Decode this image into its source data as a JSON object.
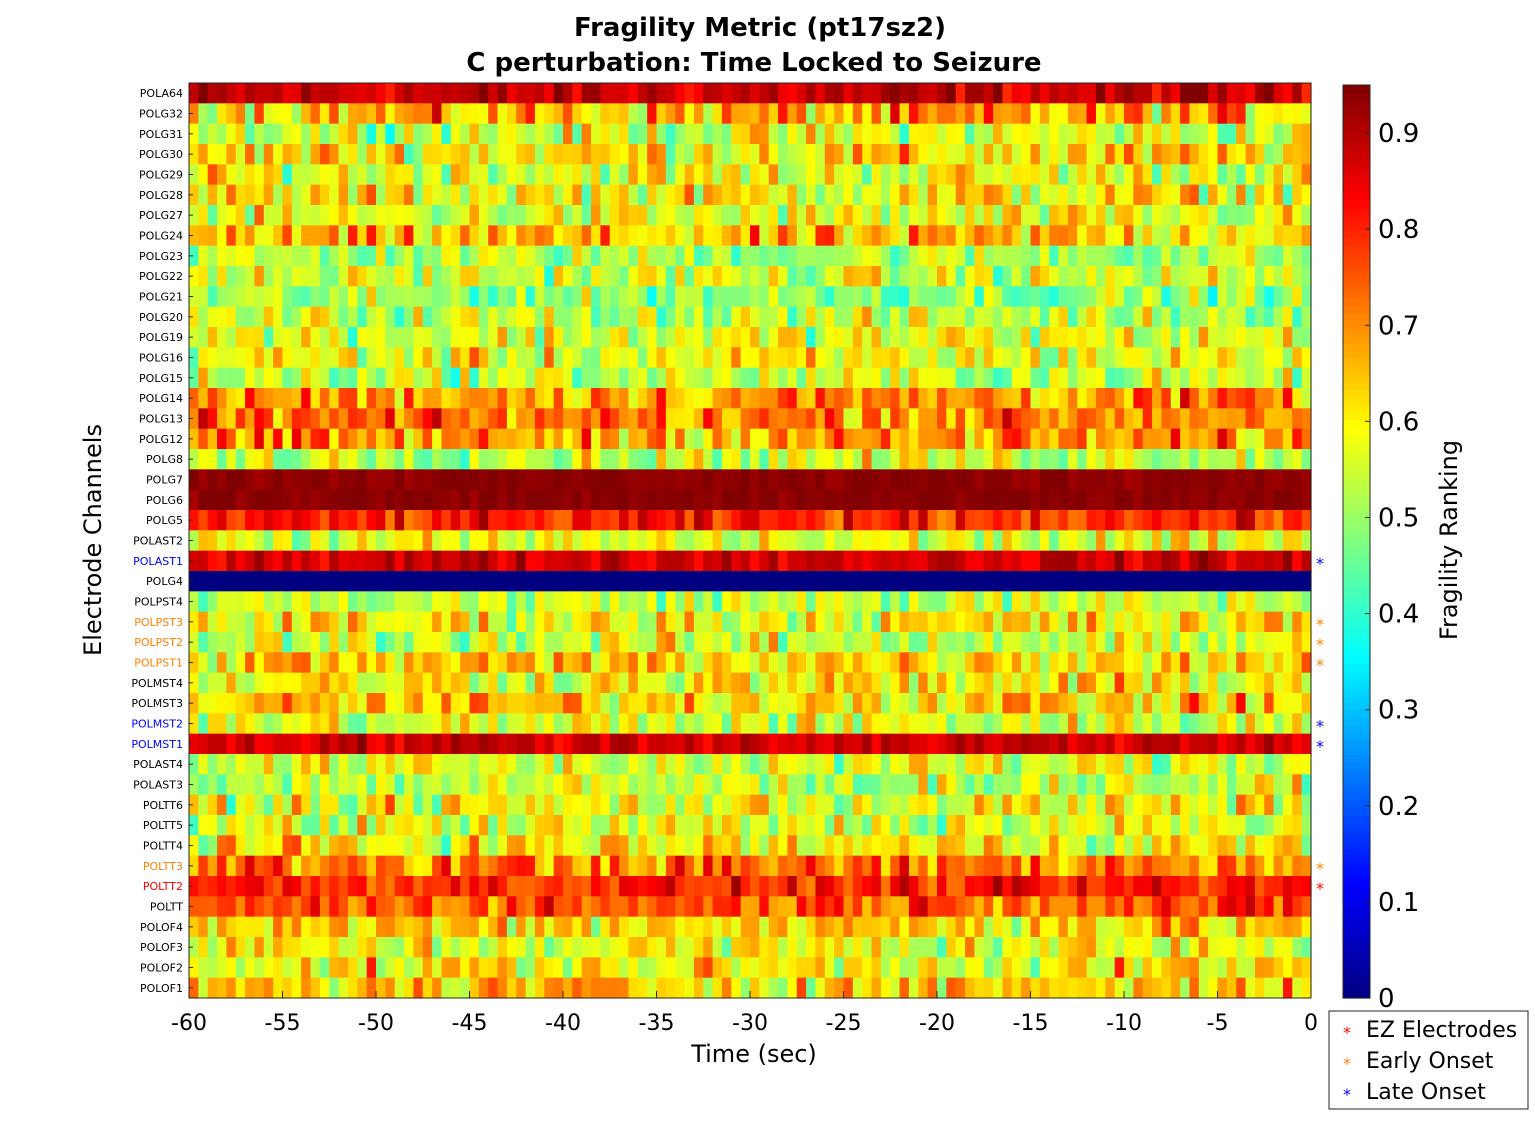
{
  "chart_data": {
    "type": "heatmap",
    "title": "Fragility Metric (pt17sz2)",
    "subtitle": "C perturbation:  Time Locked to Seizure",
    "xlabel": "Time (sec)",
    "ylabel": "Electrode Channels",
    "xlim": [
      -60,
      0
    ],
    "x_ticks": [
      "-60",
      "-55",
      "-50",
      "-45",
      "-40",
      "-35",
      "-30",
      "-25",
      "-20",
      "-15",
      "-10",
      "-5",
      "0"
    ],
    "colorbar": {
      "label": "Fragility Ranking",
      "colormap": "jet",
      "range": [
        0,
        0.95
      ],
      "ticks": [
        "0",
        "0.1",
        "0.2",
        "0.3",
        "0.4",
        "0.5",
        "0.6",
        "0.7",
        "0.8",
        "0.9"
      ]
    },
    "num_time_windows": 120,
    "channels": [
      {
        "name": "POLA64",
        "mean": 0.88,
        "spread": 0.07,
        "marker": null
      },
      {
        "name": "POLG32",
        "mean": 0.66,
        "spread": 0.14,
        "marker": null
      },
      {
        "name": "POLG31",
        "mean": 0.56,
        "spread": 0.12,
        "marker": null
      },
      {
        "name": "POLG30",
        "mean": 0.62,
        "spread": 0.13,
        "marker": null
      },
      {
        "name": "POLG29",
        "mean": 0.58,
        "spread": 0.12,
        "marker": null
      },
      {
        "name": "POLG28",
        "mean": 0.6,
        "spread": 0.12,
        "marker": null
      },
      {
        "name": "POLG27",
        "mean": 0.56,
        "spread": 0.12,
        "marker": null
      },
      {
        "name": "POLG24",
        "mean": 0.64,
        "spread": 0.13,
        "marker": null
      },
      {
        "name": "POLG23",
        "mean": 0.52,
        "spread": 0.1,
        "marker": null
      },
      {
        "name": "POLG22",
        "mean": 0.55,
        "spread": 0.11,
        "marker": null
      },
      {
        "name": "POLG21",
        "mean": 0.5,
        "spread": 0.1,
        "marker": null
      },
      {
        "name": "POLG20",
        "mean": 0.54,
        "spread": 0.11,
        "marker": null
      },
      {
        "name": "POLG19",
        "mean": 0.57,
        "spread": 0.12,
        "marker": null
      },
      {
        "name": "POLG16",
        "mean": 0.58,
        "spread": 0.12,
        "marker": null
      },
      {
        "name": "POLG15",
        "mean": 0.54,
        "spread": 0.11,
        "marker": null
      },
      {
        "name": "POLG14",
        "mean": 0.7,
        "spread": 0.12,
        "marker": null
      },
      {
        "name": "POLG13",
        "mean": 0.72,
        "spread": 0.12,
        "marker": null
      },
      {
        "name": "POLG12",
        "mean": 0.68,
        "spread": 0.13,
        "marker": null
      },
      {
        "name": "POLG8",
        "mean": 0.56,
        "spread": 0.11,
        "marker": null
      },
      {
        "name": "POLG7",
        "mean": 0.94,
        "spread": 0.02,
        "marker": null
      },
      {
        "name": "POLG6",
        "mean": 0.94,
        "spread": 0.02,
        "marker": null
      },
      {
        "name": "POLG5",
        "mean": 0.8,
        "spread": 0.08,
        "marker": null
      },
      {
        "name": "POLAST2",
        "mean": 0.56,
        "spread": 0.11,
        "marker": null
      },
      {
        "name": "POLAST1",
        "mean": 0.88,
        "spread": 0.05,
        "marker": "late"
      },
      {
        "name": "POLG4",
        "mean": 0.0,
        "spread": 0.0,
        "marker": null
      },
      {
        "name": "POLPST4",
        "mean": 0.54,
        "spread": 0.1,
        "marker": null
      },
      {
        "name": "POLPST3",
        "mean": 0.6,
        "spread": 0.12,
        "marker": "early"
      },
      {
        "name": "POLPST2",
        "mean": 0.55,
        "spread": 0.12,
        "marker": "early"
      },
      {
        "name": "POLPST1",
        "mean": 0.64,
        "spread": 0.12,
        "marker": "early"
      },
      {
        "name": "POLMST4",
        "mean": 0.6,
        "spread": 0.12,
        "marker": null
      },
      {
        "name": "POLMST3",
        "mean": 0.64,
        "spread": 0.12,
        "marker": null
      },
      {
        "name": "POLMST2",
        "mean": 0.56,
        "spread": 0.12,
        "marker": "late"
      },
      {
        "name": "POLMST1",
        "mean": 0.88,
        "spread": 0.05,
        "marker": "late"
      },
      {
        "name": "POLAST4",
        "mean": 0.56,
        "spread": 0.11,
        "marker": null
      },
      {
        "name": "POLAST3",
        "mean": 0.54,
        "spread": 0.11,
        "marker": null
      },
      {
        "name": "POLTT6",
        "mean": 0.58,
        "spread": 0.12,
        "marker": null
      },
      {
        "name": "POLTT5",
        "mean": 0.56,
        "spread": 0.12,
        "marker": null
      },
      {
        "name": "POLTT4",
        "mean": 0.6,
        "spread": 0.12,
        "marker": null
      },
      {
        "name": "POLTT3",
        "mean": 0.72,
        "spread": 0.12,
        "marker": "early"
      },
      {
        "name": "POLTT2",
        "mean": 0.8,
        "spread": 0.08,
        "marker": "ez"
      },
      {
        "name": "POLTT",
        "mean": 0.76,
        "spread": 0.1,
        "marker": null
      },
      {
        "name": "POLOF4",
        "mean": 0.64,
        "spread": 0.12,
        "marker": null
      },
      {
        "name": "POLOF3",
        "mean": 0.58,
        "spread": 0.12,
        "marker": null
      },
      {
        "name": "POLOF2",
        "mean": 0.6,
        "spread": 0.12,
        "marker": null
      },
      {
        "name": "POLOF1",
        "mean": 0.64,
        "spread": 0.12,
        "marker": null
      }
    ],
    "legend": {
      "placement": "bottom-right",
      "entries": [
        {
          "key": "ez",
          "label": "EZ Electrodes",
          "color": "#ff0000"
        },
        {
          "key": "early",
          "label": "Early Onset",
          "color": "#ff8000"
        },
        {
          "key": "late",
          "label": "Late Onset",
          "color": "#0000ff"
        }
      ]
    },
    "label_colors": {
      "ez": "#ff0000",
      "early": "#ff8000",
      "late": "#0000ff",
      "none": "#000000"
    }
  }
}
